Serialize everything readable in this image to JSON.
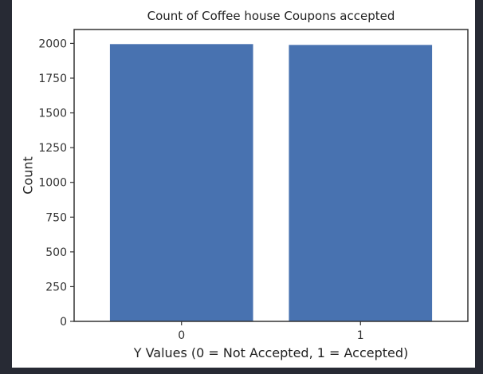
{
  "colors": {
    "page_background": "#272a34",
    "figure_background": "#ffffff",
    "bar": "#4872b0",
    "axis": "#333333"
  },
  "chart_data": {
    "type": "bar",
    "title": "Count of Coffee house Coupons accepted",
    "xlabel": "Y Values (0 = Not Accepted, 1 = Accepted)",
    "ylabel": "Count",
    "categories": [
      "0",
      "1"
    ],
    "values": [
      1995,
      1989
    ],
    "ylim": [
      0,
      2100
    ],
    "yticks": [
      0,
      250,
      500,
      750,
      1000,
      1250,
      1500,
      1750,
      2000
    ],
    "grid": false,
    "legend": "none"
  }
}
